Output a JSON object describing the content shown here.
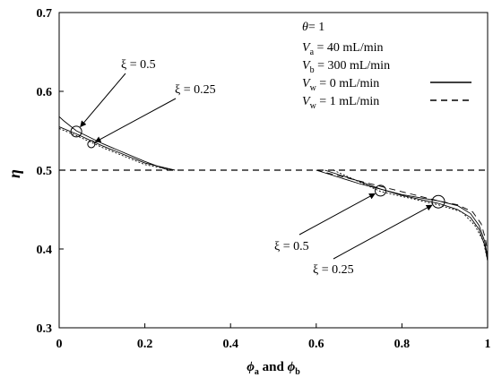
{
  "chart_data": {
    "type": "line",
    "title": "",
    "xlabel": "ϕa and ϕb",
    "ylabel": "η",
    "xlim": [
      0,
      1
    ],
    "ylim": [
      0.3,
      0.7
    ],
    "xticks": [
      "0",
      "0.2",
      "0.4",
      "0.6",
      "0.8",
      "1"
    ],
    "yticks": [
      "0.3",
      "0.4",
      "0.5",
      "0.6",
      "0.7"
    ],
    "grid": false,
    "legend_placement": "top-right",
    "parameters": {
      "theta": "1",
      "Va": "40 mL/min",
      "Vb": "300 mL/min"
    },
    "legend": [
      {
        "label_symbol": "V",
        "label_sub": "w",
        "label_value": "= 0 mL/min",
        "style": "solid"
      },
      {
        "label_symbol": "V",
        "label_sub": "w",
        "label_value": "= 1 mL/min",
        "style": "dashed"
      }
    ],
    "annotations": [
      {
        "text": "ξ = 0.5",
        "x": 0.04,
        "y": 0.549
      },
      {
        "text": "ξ = 0.25",
        "x": 0.075,
        "y": 0.533
      },
      {
        "text": "ξ = 0.5",
        "x": 0.75,
        "y": 0.474
      },
      {
        "text": "ξ = 0.25",
        "x": 0.885,
        "y": 0.46
      }
    ],
    "series": [
      {
        "line": "dashed",
        "points": [
          [
            0,
            0.5
          ],
          [
            1,
            0.5
          ]
        ]
      },
      {
        "line": "solid",
        "points": [
          [
            0.0,
            0.568
          ],
          [
            0.01,
            0.563
          ],
          [
            0.04,
            0.55
          ],
          [
            0.1,
            0.534
          ],
          [
            0.2,
            0.511
          ],
          [
            0.255,
            0.5
          ]
        ]
      },
      {
        "line": "solid",
        "points": [
          [
            0.0,
            0.555
          ],
          [
            0.04,
            0.546
          ],
          [
            0.1,
            0.531
          ],
          [
            0.2,
            0.509
          ],
          [
            0.27,
            0.5
          ]
        ]
      },
      {
        "line": "dotted",
        "points": [
          [
            0.0,
            0.553
          ],
          [
            0.04,
            0.544
          ],
          [
            0.1,
            0.529
          ],
          [
            0.2,
            0.507
          ],
          [
            0.265,
            0.5
          ]
        ]
      },
      {
        "line": "solid",
        "points": [
          [
            0.6,
            0.5
          ],
          [
            0.7,
            0.483
          ],
          [
            0.8,
            0.469
          ],
          [
            0.885,
            0.461
          ],
          [
            0.93,
            0.455
          ],
          [
            0.96,
            0.445
          ],
          [
            0.98,
            0.43
          ],
          [
            0.993,
            0.41
          ],
          [
            1.0,
            0.39
          ]
        ]
      },
      {
        "line": "solid",
        "points": [
          [
            0.62,
            0.5
          ],
          [
            0.7,
            0.486
          ],
          [
            0.75,
            0.476
          ],
          [
            0.8,
            0.468
          ],
          [
            0.885,
            0.458
          ],
          [
            0.93,
            0.45
          ],
          [
            0.96,
            0.44
          ],
          [
            0.98,
            0.425
          ],
          [
            0.993,
            0.405
          ],
          [
            1.0,
            0.385
          ]
        ]
      },
      {
        "line": "dotted",
        "points": [
          [
            0.64,
            0.5
          ],
          [
            0.75,
            0.473
          ],
          [
            0.885,
            0.456
          ],
          [
            0.94,
            0.447
          ],
          [
            0.97,
            0.43
          ],
          [
            0.99,
            0.41
          ],
          [
            1.0,
            0.385
          ]
        ]
      },
      {
        "line": "dashed",
        "points": [
          [
            0.6,
            0.5
          ],
          [
            0.885,
            0.461
          ],
          [
            0.93,
            0.456
          ],
          [
            0.965,
            0.447
          ],
          [
            0.985,
            0.432
          ],
          [
            0.995,
            0.413
          ],
          [
            1.0,
            0.395
          ]
        ]
      }
    ]
  }
}
